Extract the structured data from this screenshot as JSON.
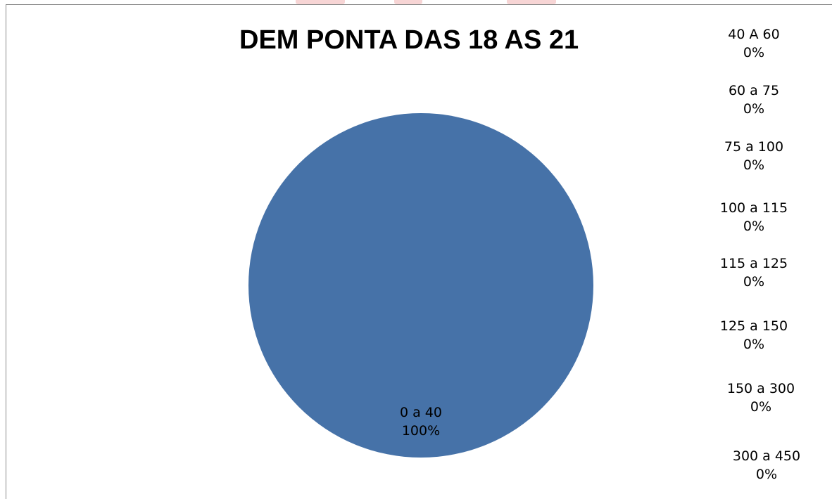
{
  "chart_data": {
    "type": "pie",
    "title": "DEM PONTA DAS 18 AS 21",
    "slices": [
      {
        "label": "0 a 40",
        "value": 100,
        "value_label": "100%",
        "color": "#4672a8"
      },
      {
        "label": "40 A 60",
        "value": 0,
        "value_label": "0%"
      },
      {
        "label": "60 a 75",
        "value": 0,
        "value_label": "0%"
      },
      {
        "label": "75 a 100",
        "value": 0,
        "value_label": "0%"
      },
      {
        "label": "100 a 115",
        "value": 0,
        "value_label": "0%"
      },
      {
        "label": "115 a 125",
        "value": 0,
        "value_label": "0%"
      },
      {
        "label": "125 a 150",
        "value": 0,
        "value_label": "0%"
      },
      {
        "label": "150 a 300",
        "value": 0,
        "value_label": "0%"
      },
      {
        "label": "300 a 450",
        "value": 0,
        "value_label": "0%"
      }
    ],
    "legend": "none",
    "data_labels": "category and percentage"
  }
}
